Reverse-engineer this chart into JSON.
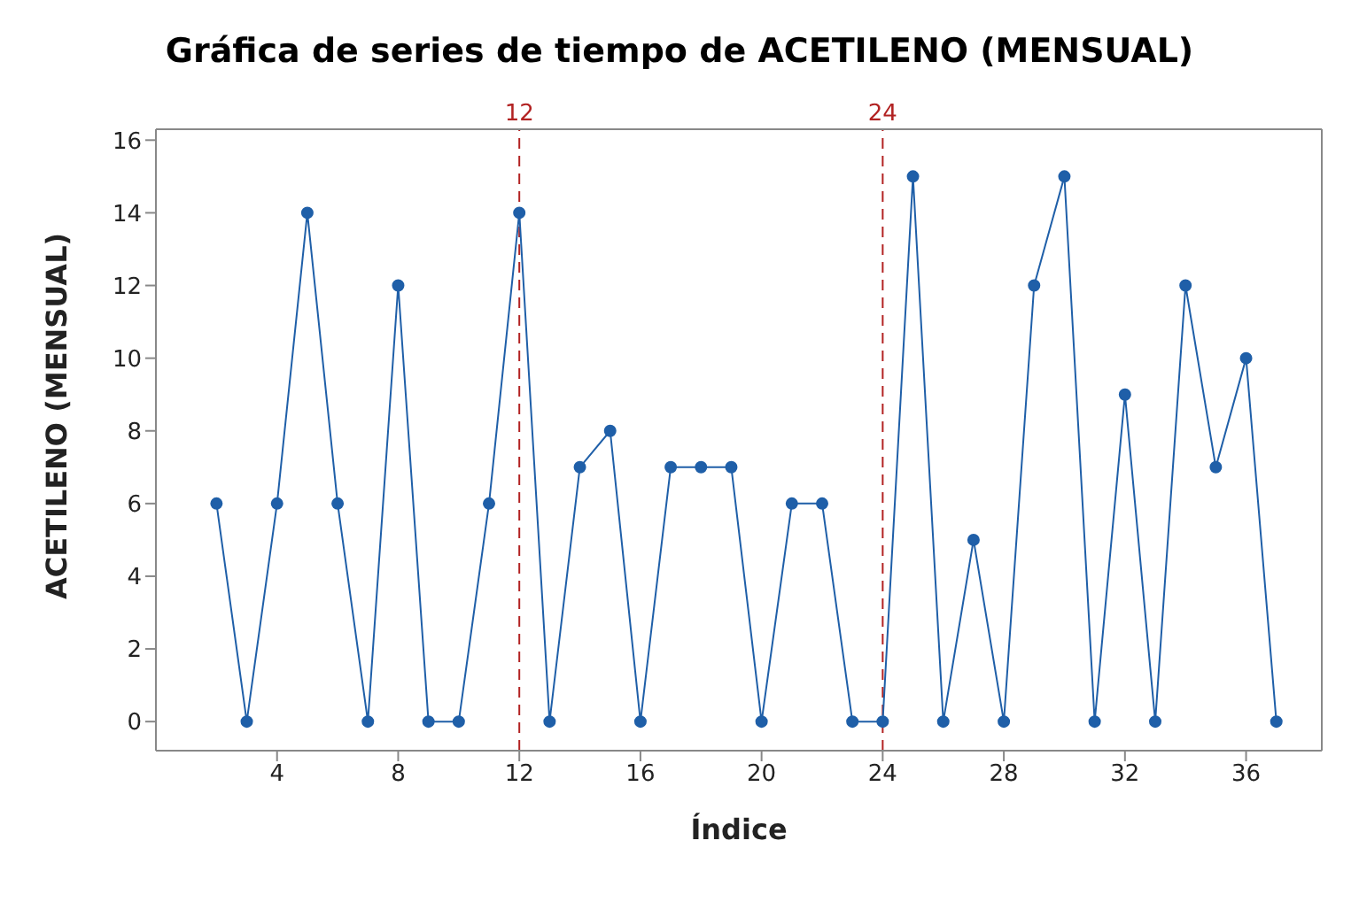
{
  "chart_data": {
    "type": "line",
    "title": "Gráfica de series de tiempo de ACETILENO (MENSUAL)",
    "xlabel": "Índice",
    "ylabel": "ACETILENO (MENSUAL)",
    "x": [
      2,
      3,
      4,
      5,
      6,
      7,
      8,
      9,
      10,
      11,
      12,
      13,
      14,
      15,
      16,
      17,
      18,
      19,
      20,
      21,
      22,
      23,
      24,
      25,
      26,
      27,
      28,
      29,
      30,
      31,
      32,
      33,
      34,
      35,
      36,
      37
    ],
    "series": [
      {
        "color": "#1f5fa8",
        "values": [
          6,
          0,
          6,
          14,
          6,
          0,
          12,
          0,
          0,
          6,
          14,
          0,
          7,
          8,
          0,
          7,
          7,
          7,
          0,
          6,
          6,
          0,
          0,
          15,
          0,
          5,
          0,
          12,
          15,
          0,
          9,
          0,
          12,
          7,
          10,
          0
        ]
      }
    ],
    "xlim": [
      0,
      38.5
    ],
    "xticks": [
      4,
      8,
      12,
      16,
      20,
      24,
      28,
      32,
      36
    ],
    "ylim": [
      -0.8,
      16.3
    ],
    "yticks": [
      0,
      2,
      4,
      6,
      8,
      10,
      12,
      14,
      16
    ],
    "ref_lines": [
      {
        "axis": "x",
        "value": 12,
        "label": "12",
        "color": "#b22222",
        "line_style": "dashed"
      },
      {
        "axis": "x",
        "value": 24,
        "label": "24",
        "color": "#b22222",
        "line_style": "dashed"
      }
    ],
    "marker": "circle",
    "line_style": "solid",
    "grid": false,
    "legend": false
  }
}
